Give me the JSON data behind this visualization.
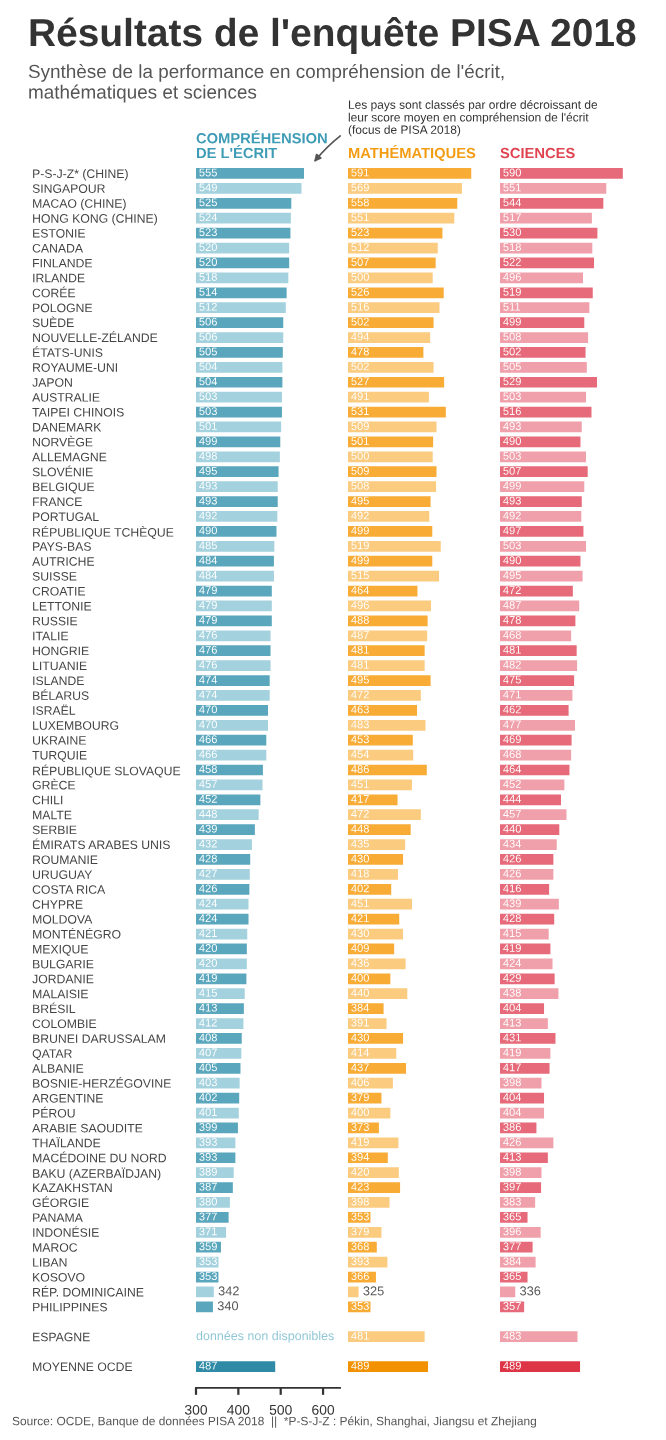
{
  "chart_data": [
    {
      "type": "bar",
      "orientation": "horizontal",
      "data_labels": true,
      "xlim": [
        300,
        640
      ],
      "xticks": [
        300,
        400,
        500,
        600
      ],
      "title": "Résultats de l'enquête PISA 2018",
      "subtitle": "Synthèse de la performance en compréhension de l'écrit,\nmathématiques et sciences",
      "annotations": [
        "Les pays sont classés par ordre décroissant de\nleur score moyen en compréhension de l'écrit\n(focus de PISA 2018)",
        "données non disponibles",
        "Source: OCDE, Banque de données PISA 2018  ||  *P-S-J-Z : Pékin, Shanghai, Jiangsu et Zhejiang"
      ],
      "categories": [
        "P-S-J-Z* (CHINE)",
        "SINGAPOUR",
        "MACAO (CHINE)",
        "HONG KONG (CHINE)",
        "ESTONIE",
        "CANADA",
        "FINLANDE",
        "IRLANDE",
        "CORÉE",
        "POLOGNE",
        "SUÈDE",
        "NOUVELLE-ZÉLANDE",
        "ÉTATS-UNIS",
        "ROYAUME-UNI",
        "JAPON",
        "AUSTRALIE",
        "TAIPEI CHINOIS",
        "DANEMARK",
        "NORVÈGE",
        "ALLEMAGNE",
        "SLOVÉNIE",
        "BELGIQUE",
        "FRANCE",
        "PORTUGAL",
        "RÉPUBLIQUE TCHÈQUE",
        "PAYS-BAS",
        "AUTRICHE",
        "SUISSE",
        "CROATIE",
        "LETTONIE",
        "RUSSIE",
        "ITALIE",
        "HONGRIE",
        "LITUANIE",
        "ISLANDE",
        "BÉLARUS",
        "ISRAËL",
        "LUXEMBOURG",
        "UKRAINE",
        "TURQUIE",
        "RÉPUBLIQUE SLOVAQUE",
        "GRÈCE",
        "CHILI",
        "MALTE",
        "SERBIE",
        "ÉMIRATS ARABES UNIS",
        "ROUMANIE",
        "URUGUAY",
        "COSTA RICA",
        "CHYPRE",
        "MOLDOVA",
        "MONTÉNÉGRO",
        "MEXIQUE",
        "BULGARIE",
        "JORDANIE",
        "MALAISIE",
        "BRÉSIL",
        "COLOMBIE",
        "BRUNEI DARUSSALAM",
        "QATAR",
        "ALBANIE",
        "BOSNIE-HERZÉGOVINE",
        "ARGENTINE",
        "PÉROU",
        "ARABIE SAOUDITE",
        "THAÏLANDE",
        "MACÉDOINE DU NORD",
        "BAKU (AZERBAÏDJAN)",
        "KAZAKHSTAN",
        "GÉORGIE",
        "PANAMA",
        "INDONÉSIE",
        "MAROC",
        "LIBAN",
        "KOSOVO",
        "RÉP. DOMINICAINE",
        "PHILIPPINES",
        null,
        "ESPAGNE",
        null,
        "MOYENNE OCDE"
      ],
      "series": [
        {
          "name": "COMPRÉHENSION\nDE L'ÉCRIT",
          "color": "#3d9bb5",
          "values": [
            555,
            549,
            525,
            524,
            523,
            520,
            520,
            518,
            514,
            512,
            506,
            506,
            505,
            504,
            504,
            503,
            503,
            501,
            499,
            498,
            495,
            493,
            493,
            492,
            490,
            485,
            484,
            484,
            479,
            479,
            479,
            476,
            476,
            476,
            474,
            474,
            470,
            470,
            466,
            466,
            458,
            457,
            452,
            448,
            439,
            432,
            428,
            427,
            426,
            424,
            424,
            421,
            420,
            420,
            419,
            415,
            413,
            412,
            408,
            407,
            405,
            403,
            402,
            401,
            399,
            393,
            393,
            389,
            387,
            380,
            377,
            371,
            359,
            353,
            353,
            342,
            340,
            null,
            null,
            null,
            487
          ],
          "colors": [
            "#5aa7bd",
            "#a3d1dd",
            "#5aa7bd",
            "#a3d1dd",
            "#5aa7bd",
            "#a3d1dd",
            "#5aa7bd",
            "#a3d1dd",
            "#5aa7bd",
            "#a3d1dd",
            "#5aa7bd",
            "#a3d1dd",
            "#5aa7bd",
            "#a3d1dd",
            "#5aa7bd",
            "#a3d1dd",
            "#5aa7bd",
            "#a3d1dd",
            "#5aa7bd",
            "#a3d1dd",
            "#5aa7bd",
            "#a3d1dd",
            "#5aa7bd",
            "#a3d1dd",
            "#5aa7bd",
            "#a3d1dd",
            "#5aa7bd",
            "#a3d1dd",
            "#5aa7bd",
            "#a3d1dd",
            "#5aa7bd",
            "#a3d1dd",
            "#5aa7bd",
            "#a3d1dd",
            "#5aa7bd",
            "#a3d1dd",
            "#5aa7bd",
            "#a3d1dd",
            "#5aa7bd",
            "#a3d1dd",
            "#5aa7bd",
            "#a3d1dd",
            "#5aa7bd",
            "#a3d1dd",
            "#5aa7bd",
            "#a3d1dd",
            "#5aa7bd",
            "#a3d1dd",
            "#5aa7bd",
            "#a3d1dd",
            "#5aa7bd",
            "#a3d1dd",
            "#5aa7bd",
            "#a3d1dd",
            "#5aa7bd",
            "#a3d1dd",
            "#5aa7bd",
            "#a3d1dd",
            "#5aa7bd",
            "#a3d1dd",
            "#5aa7bd",
            "#a3d1dd",
            "#5aa7bd",
            "#a3d1dd",
            "#5aa7bd",
            "#a3d1dd",
            "#5aa7bd",
            "#a3d1dd",
            "#5aa7bd",
            "#a3d1dd",
            "#5aa7bd",
            "#a3d1dd",
            "#5aa7bd",
            "#a3d1dd",
            "#5aa7bd",
            "#a3d1dd",
            "#5aa7bd",
            null,
            "#a3d1dd",
            null,
            "#2f8aa6"
          ]
        }
      ]
    },
    {
      "type": "bar",
      "orientation": "horizontal",
      "data_labels": true,
      "tick_labels": false,
      "series": [
        {
          "name": "MATHÉMATIQUES",
          "color": "#f39c12",
          "values": [
            591,
            569,
            558,
            551,
            523,
            512,
            507,
            500,
            526,
            516,
            502,
            494,
            478,
            502,
            527,
            491,
            531,
            509,
            501,
            500,
            509,
            508,
            495,
            492,
            499,
            519,
            499,
            515,
            464,
            496,
            488,
            487,
            481,
            481,
            495,
            472,
            463,
            483,
            453,
            454,
            486,
            451,
            417,
            472,
            448,
            435,
            430,
            418,
            402,
            451,
            421,
            430,
            409,
            436,
            400,
            440,
            384,
            391,
            430,
            414,
            437,
            406,
            379,
            400,
            373,
            419,
            394,
            420,
            423,
            398,
            353,
            379,
            368,
            393,
            366,
            325,
            353,
            null,
            481,
            null,
            489
          ],
          "colors": [
            "#f8ab35",
            "#fbcb7f",
            "#f8ab35",
            "#fbcb7f",
            "#f8ab35",
            "#fbcb7f",
            "#f8ab35",
            "#fbcb7f",
            "#f8ab35",
            "#fbcb7f",
            "#f8ab35",
            "#fbcb7f",
            "#f8ab35",
            "#fbcb7f",
            "#f8ab35",
            "#fbcb7f",
            "#f8ab35",
            "#fbcb7f",
            "#f8ab35",
            "#fbcb7f",
            "#f8ab35",
            "#fbcb7f",
            "#f8ab35",
            "#fbcb7f",
            "#f8ab35",
            "#fbcb7f",
            "#f8ab35",
            "#fbcb7f",
            "#f8ab35",
            "#fbcb7f",
            "#f8ab35",
            "#fbcb7f",
            "#f8ab35",
            "#fbcb7f",
            "#f8ab35",
            "#fbcb7f",
            "#f8ab35",
            "#fbcb7f",
            "#f8ab35",
            "#fbcb7f",
            "#f8ab35",
            "#fbcb7f",
            "#f8ab35",
            "#fbcb7f",
            "#f8ab35",
            "#fbcb7f",
            "#f8ab35",
            "#fbcb7f",
            "#f8ab35",
            "#fbcb7f",
            "#f8ab35",
            "#fbcb7f",
            "#f8ab35",
            "#fbcb7f",
            "#f8ab35",
            "#fbcb7f",
            "#f8ab35",
            "#fbcb7f",
            "#f8ab35",
            "#fbcb7f",
            "#f8ab35",
            "#fbcb7f",
            "#f8ab35",
            "#fbcb7f",
            "#f8ab35",
            "#fbcb7f",
            "#f8ab35",
            "#fbcb7f",
            "#f8ab35",
            "#fbcb7f",
            "#f8ab35",
            "#fbcb7f",
            "#f8ab35",
            "#fbcb7f",
            "#f8ab35",
            "#fbcb7f",
            "#f8ab35",
            null,
            "#fbcb7f",
            null,
            "#f39200"
          ]
        }
      ]
    },
    {
      "type": "bar",
      "orientation": "horizontal",
      "data_labels": true,
      "tick_labels": false,
      "series": [
        {
          "name": "SCIENCES",
          "color": "#e0434f",
          "values": [
            590,
            551,
            544,
            517,
            530,
            518,
            522,
            496,
            519,
            511,
            499,
            508,
            502,
            505,
            529,
            503,
            516,
            493,
            490,
            503,
            507,
            499,
            493,
            492,
            497,
            503,
            490,
            495,
            472,
            487,
            478,
            468,
            481,
            482,
            475,
            471,
            462,
            477,
            469,
            468,
            464,
            452,
            444,
            457,
            440,
            434,
            426,
            426,
            416,
            439,
            428,
            415,
            419,
            424,
            429,
            438,
            404,
            413,
            431,
            419,
            417,
            398,
            404,
            404,
            386,
            426,
            413,
            398,
            397,
            383,
            365,
            396,
            377,
            384,
            365,
            336,
            357,
            null,
            483,
            null,
            489
          ],
          "colors": [
            "#e66a79",
            "#f0a0aa",
            "#e66a79",
            "#f0a0aa",
            "#e66a79",
            "#f0a0aa",
            "#e66a79",
            "#f0a0aa",
            "#e66a79",
            "#f0a0aa",
            "#e66a79",
            "#f0a0aa",
            "#e66a79",
            "#f0a0aa",
            "#e66a79",
            "#f0a0aa",
            "#e66a79",
            "#f0a0aa",
            "#e66a79",
            "#f0a0aa",
            "#e66a79",
            "#f0a0aa",
            "#e66a79",
            "#f0a0aa",
            "#e66a79",
            "#f0a0aa",
            "#e66a79",
            "#f0a0aa",
            "#e66a79",
            "#f0a0aa",
            "#e66a79",
            "#f0a0aa",
            "#e66a79",
            "#f0a0aa",
            "#e66a79",
            "#f0a0aa",
            "#e66a79",
            "#f0a0aa",
            "#e66a79",
            "#f0a0aa",
            "#e66a79",
            "#f0a0aa",
            "#e66a79",
            "#f0a0aa",
            "#e66a79",
            "#f0a0aa",
            "#e66a79",
            "#f0a0aa",
            "#e66a79",
            "#f0a0aa",
            "#e66a79",
            "#f0a0aa",
            "#e66a79",
            "#f0a0aa",
            "#e66a79",
            "#f0a0aa",
            "#e66a79",
            "#f0a0aa",
            "#e66a79",
            "#f0a0aa",
            "#e66a79",
            "#f0a0aa",
            "#e66a79",
            "#f0a0aa",
            "#e66a79",
            "#f0a0aa",
            "#e66a79",
            "#f0a0aa",
            "#e66a79",
            "#f0a0aa",
            "#e66a79",
            "#f0a0aa",
            "#e66a79",
            "#f0a0aa",
            "#e66a79",
            "#f0a0aa",
            "#e66a79",
            null,
            "#f0a0aa",
            null,
            "#dd3546"
          ]
        }
      ]
    }
  ]
}
